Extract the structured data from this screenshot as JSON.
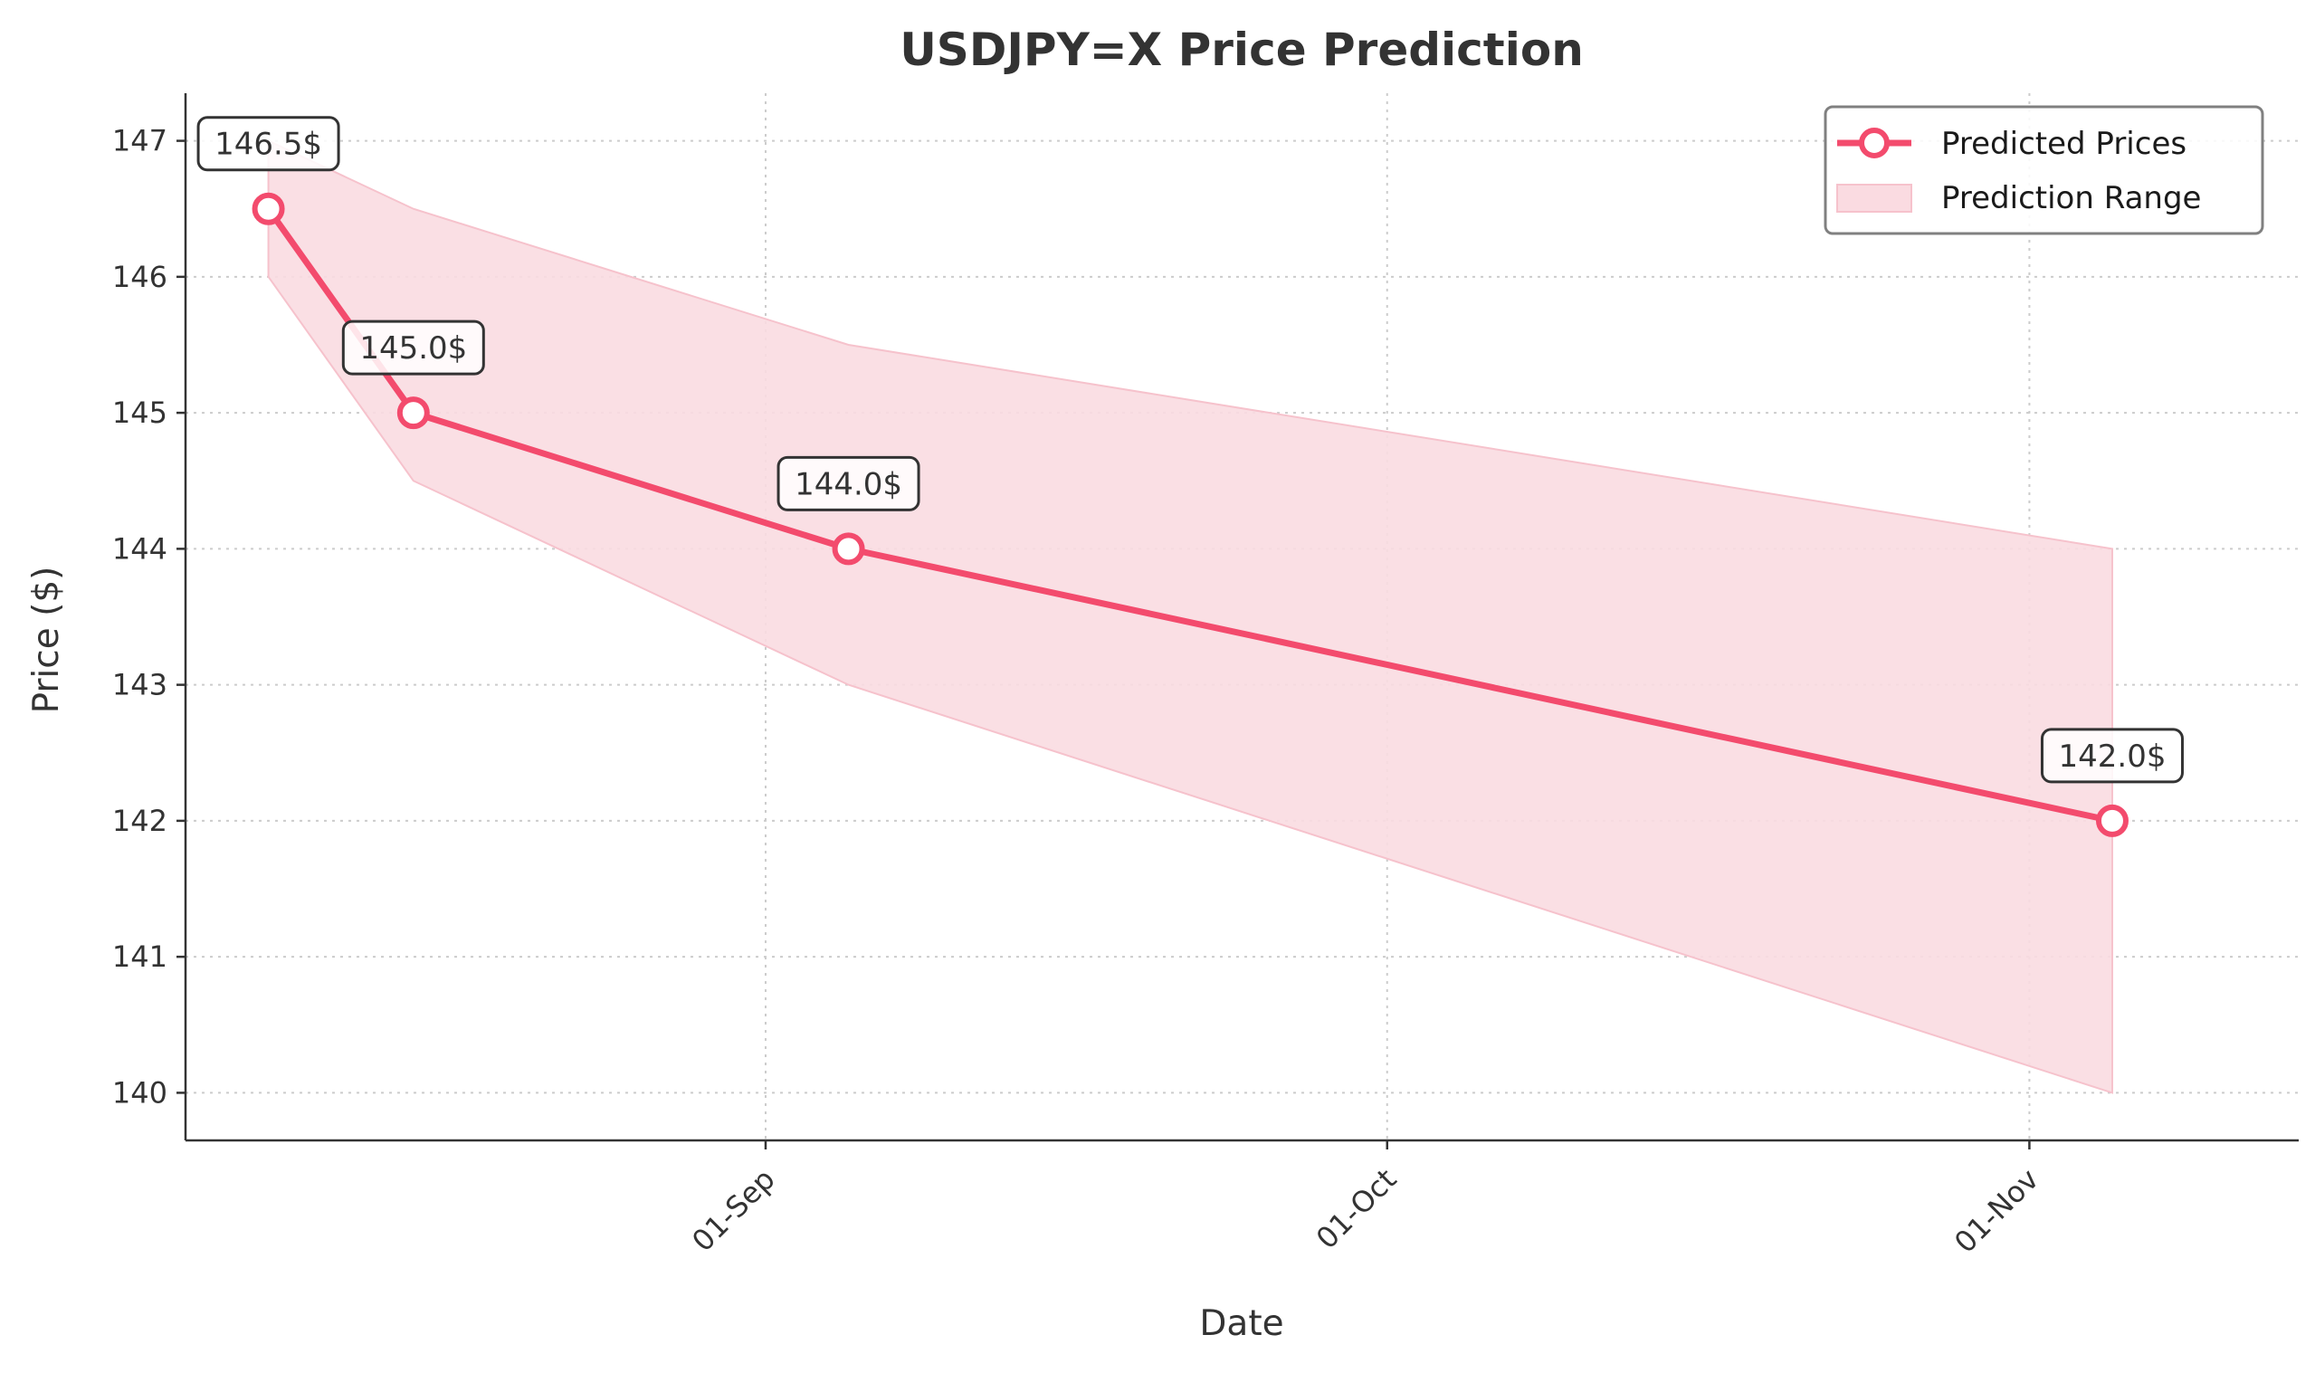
{
  "chart_data": {
    "type": "line",
    "title": "USDJPY=X Price Prediction",
    "xlabel": "Date",
    "ylabel": "Price ($)",
    "x_axis": {
      "kind": "date",
      "range": [
        "2024-08-04",
        "2024-11-14"
      ],
      "ticks": [
        {
          "date": "2024-09-01",
          "label": "01-Sep"
        },
        {
          "date": "2024-10-01",
          "label": "01-Oct"
        },
        {
          "date": "2024-11-01",
          "label": "01-Nov"
        }
      ]
    },
    "ylim": [
      139.65,
      147.35
    ],
    "yticks": [
      140,
      141,
      142,
      143,
      144,
      145,
      146,
      147
    ],
    "grid": true,
    "legend_position": "top-right",
    "series": [
      {
        "name": "Predicted Prices",
        "type": "line",
        "color": "#f34b6d",
        "points": [
          {
            "x": "2024-08-08",
            "y": 146.5,
            "label": "146.5$"
          },
          {
            "x": "2024-08-15",
            "y": 145.0,
            "label": "145.0$"
          },
          {
            "x": "2024-09-05",
            "y": 144.0,
            "label": "144.0$"
          },
          {
            "x": "2024-11-05",
            "y": 142.0,
            "label": "142.0$"
          }
        ]
      },
      {
        "name": "Prediction Range",
        "type": "area",
        "color": "#fadbe1",
        "points": [
          {
            "x": "2024-08-08",
            "low": 146.0,
            "high": 147.0
          },
          {
            "x": "2024-08-15",
            "low": 144.5,
            "high": 146.5
          },
          {
            "x": "2024-09-05",
            "low": 143.0,
            "high": 145.5
          },
          {
            "x": "2024-11-05",
            "low": 140.0,
            "high": 144.0
          }
        ]
      }
    ]
  }
}
